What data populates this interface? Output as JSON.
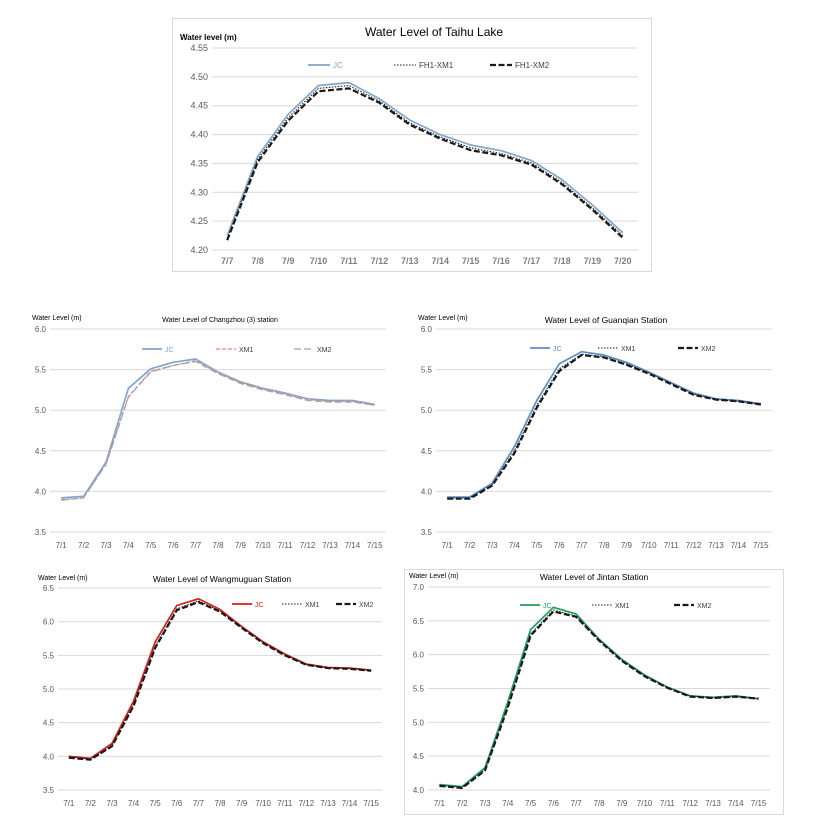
{
  "chart_data": [
    {
      "id": "taihu",
      "type": "line",
      "title": "Water Level of Taihu Lake",
      "ylabel": "Water level  (m)",
      "xlabel": "",
      "ylim": [
        4.2,
        4.55
      ],
      "yticks": [
        "4.20",
        "4.25",
        "4.30",
        "4.35",
        "4.40",
        "4.45",
        "4.50",
        "4.55"
      ],
      "categories": [
        "7/7",
        "7/8",
        "7/9",
        "7/10",
        "7/11",
        "7/12",
        "7/13",
        "7/14",
        "7/15",
        "7/16",
        "7/17",
        "7/18",
        "7/19",
        "7/20"
      ],
      "grid": true,
      "legend": "top",
      "series": [
        {
          "name": "JC",
          "color": "#7fa7cf",
          "style": "solid",
          "values": [
            4.225,
            4.362,
            4.435,
            4.485,
            4.49,
            4.462,
            4.425,
            4.4,
            4.382,
            4.372,
            4.355,
            4.322,
            4.278,
            4.23
          ]
        },
        {
          "name": "FH1-XM1",
          "color": "#1a1a1a",
          "style": "dot",
          "values": [
            4.22,
            4.357,
            4.429,
            4.48,
            4.485,
            4.458,
            4.42,
            4.396,
            4.377,
            4.367,
            4.351,
            4.317,
            4.273,
            4.225
          ]
        },
        {
          "name": "FH1-XM2",
          "color": "#1a1a1a",
          "style": "dashbold",
          "values": [
            4.217,
            4.352,
            4.424,
            4.475,
            4.48,
            4.455,
            4.417,
            4.393,
            4.373,
            4.364,
            4.348,
            4.314,
            4.27,
            4.221
          ]
        }
      ]
    },
    {
      "id": "changzhou",
      "type": "line",
      "title": "Water Level of Changzhou (3) station",
      "ylabel": "Water Level (m)",
      "xlabel": "",
      "ylim": [
        3.5,
        6.0
      ],
      "yticks": [
        "3.5",
        "4.0",
        "4.5",
        "5.0",
        "5.5",
        "6.0"
      ],
      "categories": [
        "7/1",
        "7/2",
        "7/3",
        "7/4",
        "7/5",
        "7/6",
        "7/7",
        "7/8",
        "7/9",
        "7/10",
        "7/11",
        "7/12",
        "7/13",
        "7/14",
        "7/15"
      ],
      "grid": true,
      "legend": "top",
      "series": [
        {
          "name": "JC",
          "color": "#7fa7cf",
          "style": "solid",
          "values": [
            3.92,
            3.94,
            4.36,
            5.27,
            5.51,
            5.59,
            5.63,
            5.47,
            5.35,
            5.27,
            5.21,
            5.14,
            5.12,
            5.12,
            5.07
          ]
        },
        {
          "name": "XM1",
          "color": "#e8857a",
          "style": "dash",
          "values": [
            3.9,
            3.92,
            4.34,
            5.17,
            5.48,
            5.55,
            5.61,
            5.46,
            5.34,
            5.26,
            5.2,
            5.13,
            5.11,
            5.11,
            5.06
          ]
        },
        {
          "name": "XM2",
          "color": "#9aa5b1",
          "style": "longdash",
          "values": [
            3.89,
            3.92,
            4.33,
            5.16,
            5.47,
            5.55,
            5.6,
            5.45,
            5.33,
            5.25,
            5.19,
            5.12,
            5.1,
            5.1,
            5.06
          ]
        }
      ]
    },
    {
      "id": "guanqian",
      "type": "line",
      "title": "Water Level of Guanqian Station",
      "ylabel": "Water Level (m)",
      "xlabel": "",
      "ylim": [
        3.5,
        6.0
      ],
      "yticks": [
        "3.5",
        "4.0",
        "4.5",
        "5.0",
        "5.5",
        "6.0"
      ],
      "categories": [
        "7/1",
        "7/2",
        "7/3",
        "7/4",
        "7/5",
        "7/6",
        "7/7",
        "7/8",
        "7/9",
        "7/10",
        "7/11",
        "7/12",
        "7/13",
        "7/14",
        "7/15"
      ],
      "grid": true,
      "legend": "top",
      "series": [
        {
          "name": "JC",
          "color": "#5b8fc7",
          "style": "solid",
          "values": [
            3.93,
            3.93,
            4.1,
            4.55,
            5.12,
            5.57,
            5.72,
            5.68,
            5.59,
            5.47,
            5.34,
            5.21,
            5.14,
            5.12,
            5.08
          ]
        },
        {
          "name": "XM1",
          "color": "#1a1a1a",
          "style": "dot",
          "values": [
            3.92,
            3.92,
            4.08,
            4.5,
            5.06,
            5.51,
            5.69,
            5.66,
            5.57,
            5.46,
            5.33,
            5.2,
            5.13,
            5.11,
            5.07
          ]
        },
        {
          "name": "XM2",
          "color": "#1a1a1a",
          "style": "dashbold",
          "values": [
            3.91,
            3.91,
            4.07,
            4.47,
            5.03,
            5.48,
            5.68,
            5.65,
            5.56,
            5.45,
            5.32,
            5.19,
            5.13,
            5.11,
            5.07
          ]
        }
      ]
    },
    {
      "id": "wangmuguan",
      "type": "line",
      "title": "Water Level of Wangmuguan Station",
      "ylabel": "Water Level (m)",
      "xlabel": "",
      "ylim": [
        3.5,
        6.5
      ],
      "yticks": [
        "3.5",
        "4.0",
        "4.5",
        "5.0",
        "5.5",
        "6.0",
        "6.5"
      ],
      "categories": [
        "7/1",
        "7/2",
        "7/3",
        "7/4",
        "7/5",
        "7/6",
        "7/7",
        "7/8",
        "7/9",
        "7/10",
        "7/11",
        "7/12",
        "7/13",
        "7/14",
        "7/15"
      ],
      "grid": true,
      "legend": "top",
      "series": [
        {
          "name": "JC",
          "color": "#e01a1a",
          "style": "solid",
          "values": [
            4.0,
            3.97,
            4.19,
            4.82,
            5.7,
            6.24,
            6.34,
            6.18,
            5.93,
            5.7,
            5.52,
            5.37,
            5.32,
            5.31,
            5.28
          ]
        },
        {
          "name": "XM1",
          "color": "#1a1a1a",
          "style": "dot",
          "values": [
            3.99,
            3.96,
            4.16,
            4.77,
            5.64,
            6.19,
            6.31,
            6.16,
            5.92,
            5.69,
            5.51,
            5.36,
            5.31,
            5.31,
            5.27
          ]
        },
        {
          "name": "XM2",
          "color": "#1a1a1a",
          "style": "dashbold",
          "values": [
            3.98,
            3.95,
            4.15,
            4.75,
            5.61,
            6.17,
            6.29,
            6.15,
            5.91,
            5.68,
            5.5,
            5.36,
            5.31,
            5.3,
            5.27
          ]
        }
      ]
    },
    {
      "id": "jintan",
      "type": "line",
      "title": "Water Level of Jintan Station",
      "ylabel": "Water Level (m)",
      "xlabel": "",
      "ylim": [
        4.0,
        7.0
      ],
      "yticks": [
        "4.0",
        "4.5",
        "5.0",
        "5.5",
        "6.0",
        "6.5",
        "7.0"
      ],
      "categories": [
        "7/1",
        "7/2",
        "7/3",
        "7/4",
        "7/5",
        "7/6",
        "7/7",
        "7/8",
        "7/9",
        "7/10",
        "7/11",
        "7/12",
        "7/13",
        "7/14",
        "7/15"
      ],
      "grid": true,
      "legend": "top",
      "series": [
        {
          "name": "JC",
          "color": "#1f9e5a",
          "style": "solid",
          "values": [
            4.08,
            4.05,
            4.33,
            5.3,
            6.37,
            6.7,
            6.6,
            6.23,
            5.93,
            5.7,
            5.52,
            5.39,
            5.37,
            5.39,
            5.35
          ]
        },
        {
          "name": "XM1",
          "color": "#1a1a1a",
          "style": "dot",
          "values": [
            4.07,
            4.04,
            4.3,
            5.24,
            6.31,
            6.66,
            6.57,
            6.22,
            5.92,
            5.69,
            5.51,
            5.39,
            5.36,
            5.38,
            5.35
          ]
        },
        {
          "name": "XM2",
          "color": "#1a1a1a",
          "style": "dashbold",
          "values": [
            4.06,
            4.03,
            4.29,
            5.22,
            6.28,
            6.64,
            6.56,
            6.21,
            5.91,
            5.68,
            5.51,
            5.38,
            5.36,
            5.38,
            5.35
          ]
        }
      ]
    }
  ]
}
